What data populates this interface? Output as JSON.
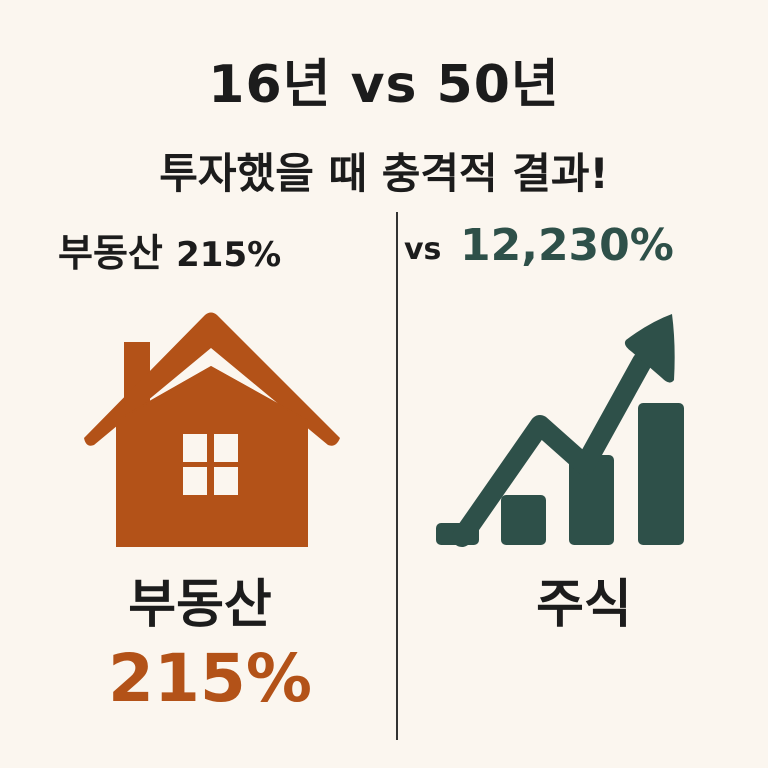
{
  "title_line1": "16년 vs 50년",
  "title_line2": "투자했을 때 충격적 결과!",
  "comparison": {
    "left_label": "부동산",
    "left_value": "215%",
    "vs": "vs",
    "right_value": "12,230%"
  },
  "left_panel": {
    "icon": "house-icon",
    "label": "부동산",
    "value": "215%"
  },
  "right_panel": {
    "icon": "growth-chart-icon",
    "label": "주식"
  },
  "colors": {
    "background": "#fbf6ef",
    "real_estate": "#b35218",
    "stocks": "#2e5049",
    "text": "#1c1c1c"
  }
}
